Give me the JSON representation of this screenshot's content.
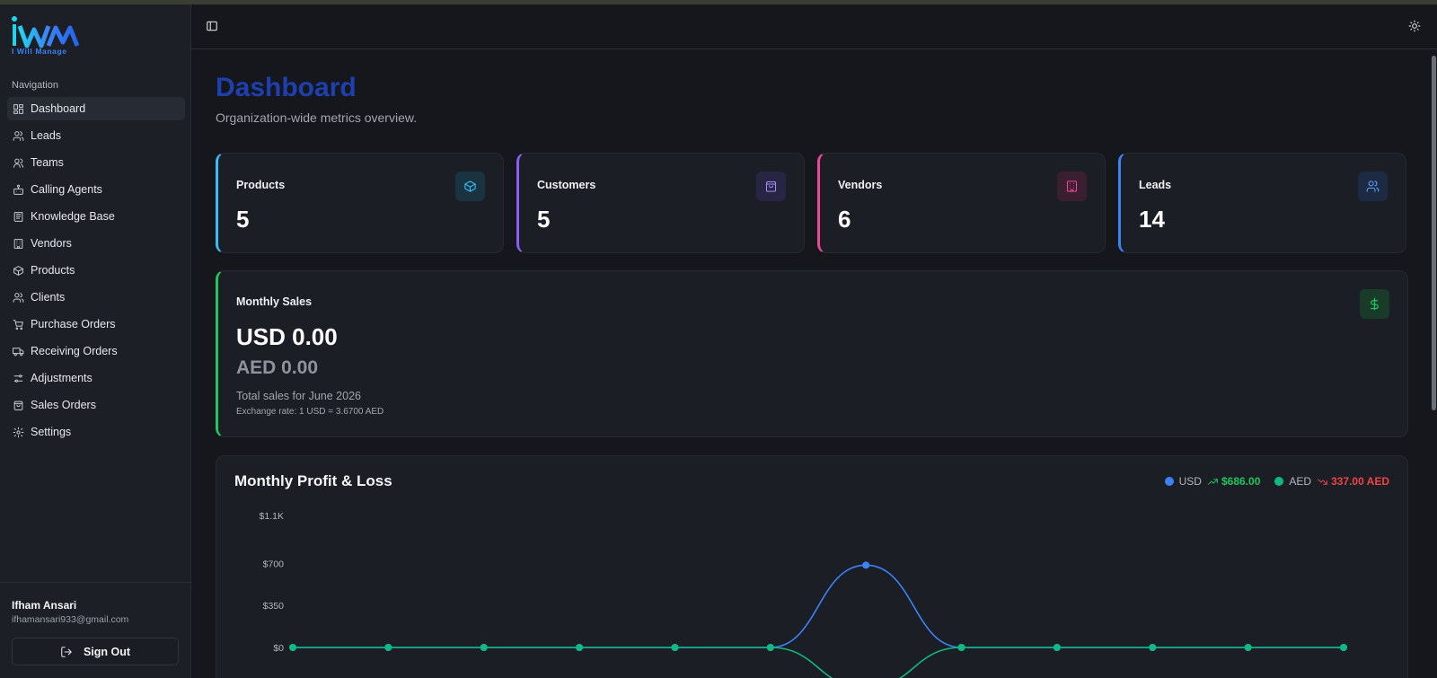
{
  "brand": {
    "logo_text": "IWM",
    "tagline": "I Will Manage"
  },
  "sidebar": {
    "heading": "Navigation",
    "items": [
      {
        "label": "Dashboard",
        "icon": "grid-icon",
        "active": true
      },
      {
        "label": "Leads",
        "icon": "users-icon"
      },
      {
        "label": "Teams",
        "icon": "user-group-icon"
      },
      {
        "label": "Calling Agents",
        "icon": "bot-icon"
      },
      {
        "label": "Knowledge Base",
        "icon": "book-icon"
      },
      {
        "label": "Vendors",
        "icon": "building-icon"
      },
      {
        "label": "Products",
        "icon": "package-icon"
      },
      {
        "label": "Clients",
        "icon": "users-icon"
      },
      {
        "label": "Purchase Orders",
        "icon": "cart-icon"
      },
      {
        "label": "Receiving Orders",
        "icon": "truck-icon"
      },
      {
        "label": "Adjustments",
        "icon": "sliders-icon"
      },
      {
        "label": "Sales Orders",
        "icon": "shopping-bag-icon"
      },
      {
        "label": "Settings",
        "icon": "gear-icon"
      }
    ],
    "user": {
      "name": "Ifham Ansari",
      "email": "ifhamansari933@gmail.com"
    },
    "signout_label": "Sign Out"
  },
  "page": {
    "title": "Dashboard",
    "subtitle": "Organization-wide metrics overview."
  },
  "stats": [
    {
      "label": "Products",
      "value": "5",
      "color": "#38bdf8",
      "icon_bg": "#1a3340",
      "icon": "package-icon"
    },
    {
      "label": "Customers",
      "value": "5",
      "color": "#8b5cf6",
      "icon_bg": "#272543",
      "icon": "shopping-bag-icon"
    },
    {
      "label": "Vendors",
      "value": "6",
      "color": "#ec4899",
      "icon_bg": "#3a1f30",
      "icon": "building-icon"
    },
    {
      "label": "Leads",
      "value": "14",
      "color": "#3b82f6",
      "icon_bg": "#1d2a44",
      "icon": "users-icon"
    }
  ],
  "sales": {
    "label": "Monthly Sales",
    "usd": "USD 0.00",
    "aed": "AED 0.00",
    "period": "Total sales for June 2026",
    "rate": "Exchange rate: 1 USD = 3.6700 AED",
    "icon": "dollar-icon"
  },
  "pl": {
    "title": "Monthly Profit & Loss",
    "legend": [
      {
        "name": "USD",
        "value": "$686.00",
        "color": "#3b82f6",
        "trend": "up",
        "trend_color": "#22c55e"
      },
      {
        "name": "AED",
        "value": "337.00 AED",
        "color": "#10b981",
        "trend": "down",
        "trend_color": "#ef4444"
      }
    ]
  },
  "chart_data": {
    "type": "line",
    "y_ticks": [
      "$1.1K",
      "$700",
      "$350",
      "$0"
    ],
    "ylim": [
      0,
      1100
    ],
    "x_count": 12,
    "series": [
      {
        "name": "USD",
        "color": "#3b82f6",
        "values": [
          0,
          0,
          0,
          0,
          0,
          0,
          686,
          0,
          0,
          0,
          0,
          0
        ]
      },
      {
        "name": "AED",
        "color": "#10b981",
        "values": [
          0,
          0,
          0,
          0,
          0,
          0,
          -337,
          0,
          0,
          0,
          0,
          0
        ]
      }
    ]
  }
}
